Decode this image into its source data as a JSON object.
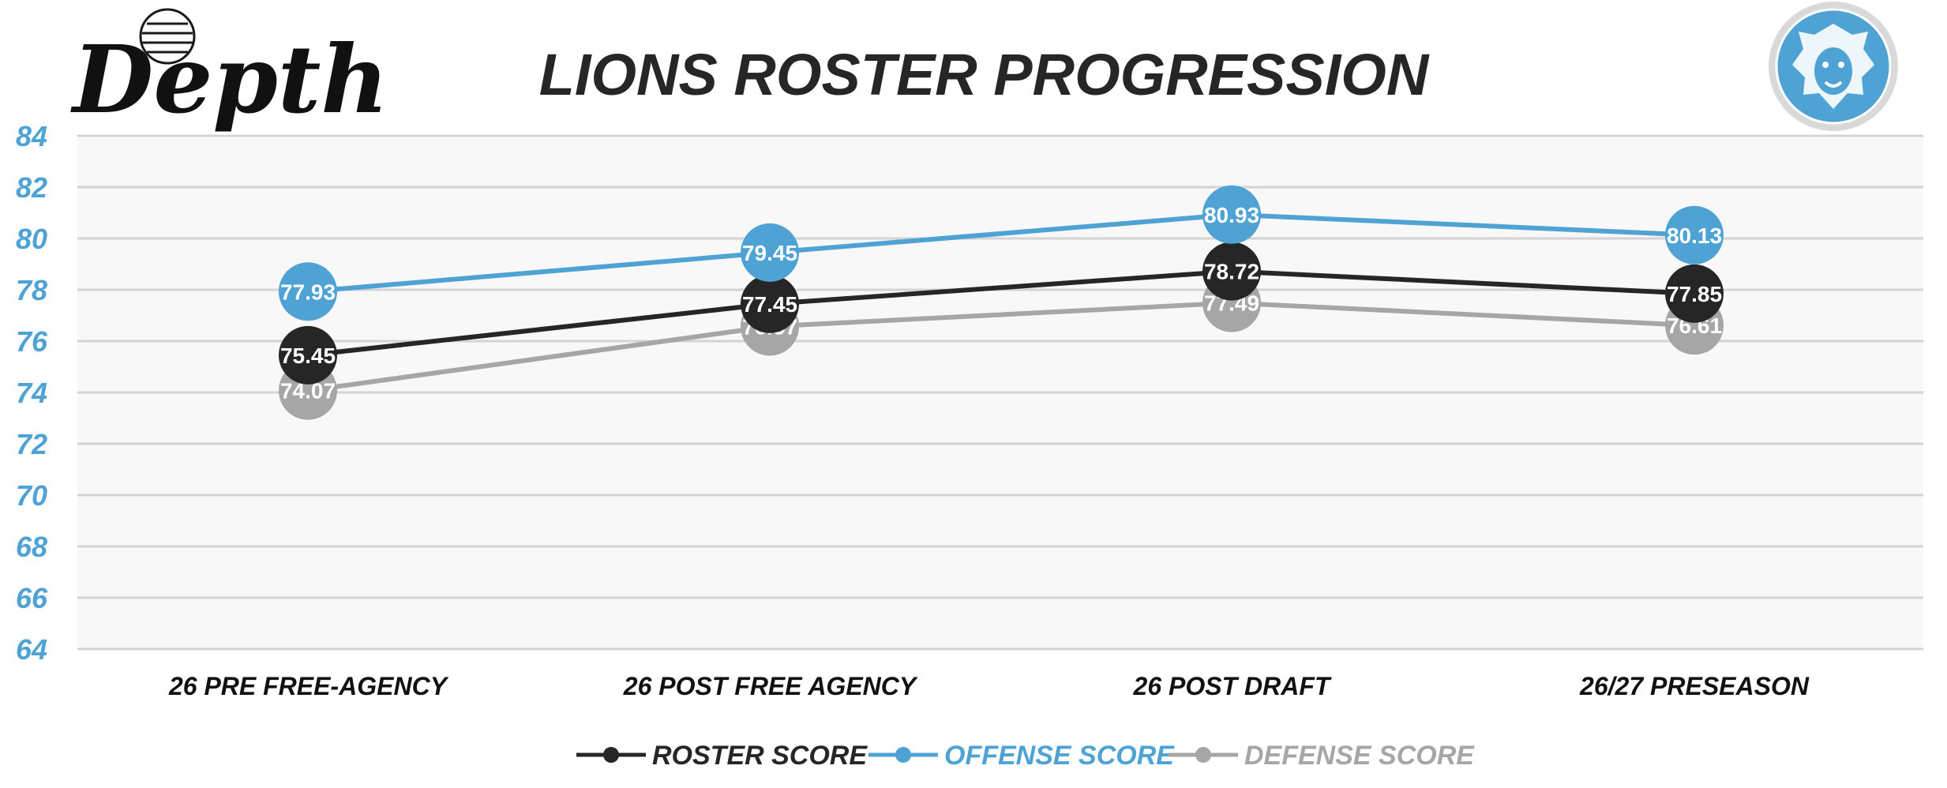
{
  "brand": {
    "logo_text": "Depth"
  },
  "chart_data": {
    "type": "line",
    "title": "LIONS ROSTER PROGRESSION",
    "categories": [
      "26 PRE FREE-AGENCY",
      "26 POST FREE AGENCY",
      "26 POST DRAFT",
      "26/27 PRESEASON"
    ],
    "ylim": [
      64,
      84
    ],
    "yticks": [
      84,
      82,
      80,
      78,
      76,
      74,
      72,
      70,
      68,
      66,
      64
    ],
    "grid": true,
    "legend_position": "bottom",
    "series": [
      {
        "name": "ROSTER SCORE",
        "color": "#262626",
        "values": [
          75.45,
          77.45,
          78.72,
          77.85
        ]
      },
      {
        "name": "OFFENSE SCORE",
        "color": "#4ea3d4",
        "values": [
          77.93,
          79.45,
          80.93,
          80.13
        ]
      },
      {
        "name": "DEFENSE SCORE",
        "color": "#a6a6a6",
        "values": [
          74.07,
          76.57,
          77.49,
          76.61
        ]
      }
    ],
    "colors": {
      "ytick": "#4ea3d4",
      "title": "#262626",
      "plot_bg": "#f8f8f8",
      "grid": "#d4d4d4"
    }
  }
}
